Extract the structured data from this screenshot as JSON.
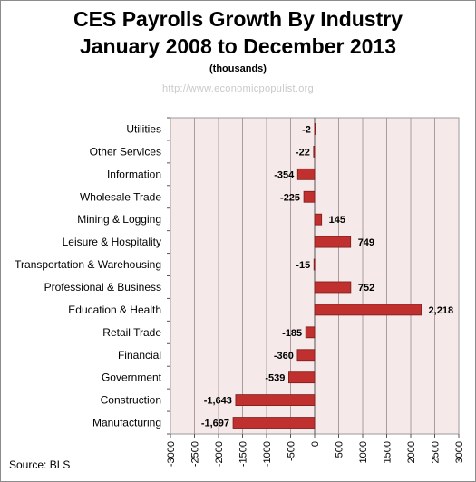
{
  "header": {
    "title_line1": "CES Payrolls Growth By Industry",
    "title_line2": "January 2008 to December 2013",
    "subtitle": "(thousands)",
    "watermark": "http://www.economicpopulist.org"
  },
  "footer": {
    "source": "Source:  BLS"
  },
  "chart_data": {
    "type": "bar",
    "orientation": "horizontal",
    "title": "CES Payrolls Growth By Industry January 2008 to December 2013",
    "subtitle": "(thousands)",
    "categories": [
      "Utilities",
      "Other Services",
      "Information",
      "Wholesale Trade",
      "Mining & Logging",
      "Leisure & Hospitality",
      "Transportation & Warehousing",
      "Professional & Business",
      "Education & Health",
      "Retail Trade",
      "Financial",
      "Government",
      "Construction",
      "Manufacturing"
    ],
    "values": [
      -2,
      -22,
      -354,
      -225,
      145,
      749,
      -15,
      752,
      2218,
      -185,
      -360,
      -539,
      -1643,
      -1697
    ],
    "value_labels": [
      "-2",
      "-22",
      "-354",
      "-225",
      "145",
      "749",
      "-15",
      "752",
      "2,218",
      "-185",
      "-360",
      "-539",
      "-1,643",
      "-1,697"
    ],
    "xlim": [
      -3000,
      3000
    ],
    "xticks": [
      -3000,
      -2500,
      -2000,
      -1500,
      -1000,
      -500,
      0,
      500,
      1000,
      1500,
      2000,
      2500,
      3000
    ],
    "xtick_labels": [
      "-3000",
      "-2500",
      "-2000",
      "-1500",
      "-1000",
      "-500",
      "0",
      "500",
      "1000",
      "1500",
      "2000",
      "2500",
      "3000"
    ],
    "grid": true,
    "legend": "none",
    "colors": {
      "bar": "#c0302e",
      "bar_edge": "#7a1d1b",
      "plot_bg": "#f6e9e9",
      "grid": "#9a8a8a"
    }
  }
}
